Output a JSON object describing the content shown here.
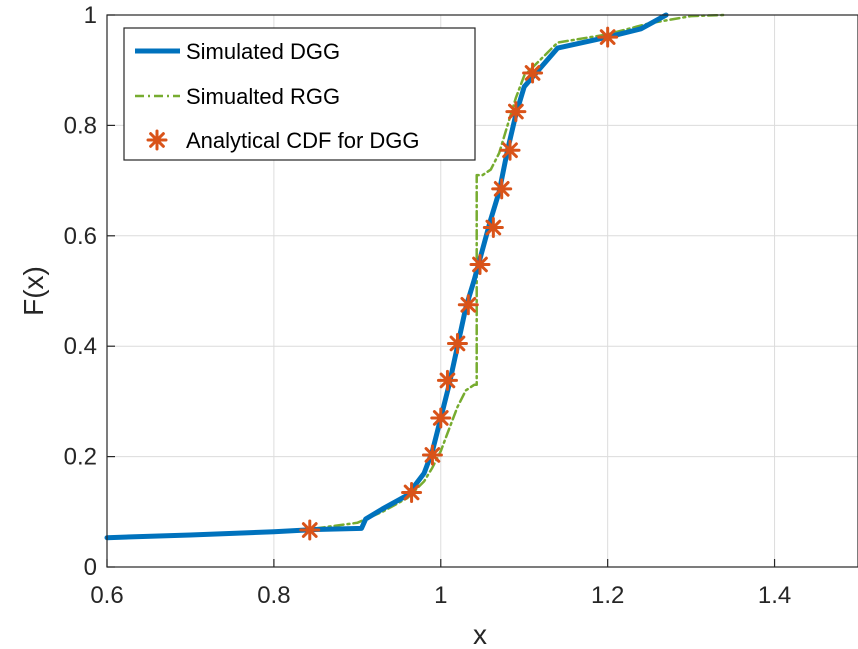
{
  "chart_data": {
    "type": "line",
    "title": "",
    "xlabel": "x",
    "ylabel": "F(x)",
    "xlim": [
      0.6,
      1.5
    ],
    "ylim": [
      0,
      1
    ],
    "xticks": [
      0.6,
      0.8,
      1.0,
      1.2,
      1.4
    ],
    "xtick_labels": [
      "0.6",
      "0.8",
      "1",
      "1.2",
      "1.4"
    ],
    "yticks": [
      0,
      0.2,
      0.4,
      0.6,
      0.8,
      1.0
    ],
    "ytick_labels": [
      "0",
      "0.2",
      "0.4",
      "0.6",
      "0.8",
      "1"
    ],
    "grid": true,
    "legend_position": "top-left",
    "colors": {
      "dgg": "#0072BD",
      "rgg": "#77AC30",
      "analytical": "#D95319",
      "axis": "#262626",
      "grid": "#dcdcdc"
    },
    "series": [
      {
        "name": "Simulated DGG",
        "style": "solid",
        "x": [
          0.6,
          0.7,
          0.8,
          0.85,
          0.905,
          0.91,
          0.93,
          0.96,
          0.98,
          0.99,
          1.0,
          1.01,
          1.02,
          1.03,
          1.04,
          1.05,
          1.06,
          1.07,
          1.08,
          1.09,
          1.1,
          1.12,
          1.14,
          1.2,
          1.24,
          1.27
        ],
        "y": [
          0.053,
          0.058,
          0.064,
          0.068,
          0.07,
          0.087,
          0.105,
          0.13,
          0.17,
          0.21,
          0.27,
          0.33,
          0.4,
          0.47,
          0.52,
          0.575,
          0.63,
          0.68,
          0.755,
          0.82,
          0.87,
          0.905,
          0.94,
          0.96,
          0.975,
          1.0
        ]
      },
      {
        "name": "Simualted RGG",
        "style": "dashdot",
        "x": [
          0.6,
          0.7,
          0.8,
          0.85,
          0.9,
          0.93,
          0.96,
          0.98,
          0.99,
          1.0,
          1.01,
          1.02,
          1.03,
          1.04,
          1.043,
          1.043,
          1.043,
          1.05,
          1.06,
          1.07,
          1.08,
          1.09,
          1.1,
          1.12,
          1.14,
          1.2,
          1.25,
          1.3,
          1.34
        ],
        "y": [
          0.052,
          0.058,
          0.065,
          0.07,
          0.08,
          0.1,
          0.125,
          0.155,
          0.18,
          0.21,
          0.25,
          0.29,
          0.32,
          0.33,
          0.33,
          0.48,
          0.71,
          0.71,
          0.72,
          0.75,
          0.8,
          0.85,
          0.89,
          0.92,
          0.95,
          0.965,
          0.985,
          0.998,
          1.0
        ]
      },
      {
        "name": "Analytical CDF for DGG",
        "style": "marker",
        "x": [
          0.843,
          0.965,
          0.99,
          1.0,
          1.008,
          1.02,
          1.033,
          1.047,
          1.063,
          1.073,
          1.083,
          1.09,
          1.11,
          1.2
        ],
        "y": [
          0.067,
          0.135,
          0.203,
          0.27,
          0.338,
          0.405,
          0.475,
          0.548,
          0.615,
          0.685,
          0.755,
          0.825,
          0.895,
          0.96
        ]
      }
    ]
  }
}
